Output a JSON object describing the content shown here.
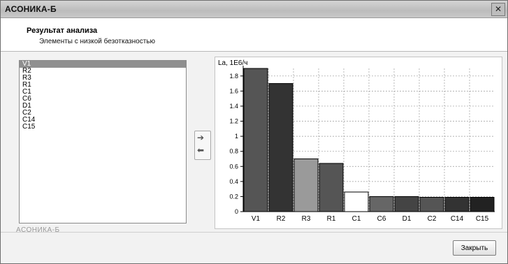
{
  "window": {
    "title": "АСОНИКА-Б",
    "close_glyph": "✕"
  },
  "header": {
    "title": "Результат анализа",
    "subtitle": "Элементы с низкой безотказностью"
  },
  "list": {
    "items": [
      "V1",
      "R2",
      "R3",
      "R1",
      "C1",
      "C6",
      "D1",
      "C2",
      "C14",
      "C15"
    ],
    "selected_index": 0
  },
  "brand": "АСОНИКА-Б",
  "swap_icons": [
    "swap-right-icon",
    "swap-left-icon"
  ],
  "buttons": {
    "close_label": "Закрыть"
  },
  "chart_data": {
    "type": "bar",
    "ylabel": "La, 1E6/ч",
    "ylim": [
      0,
      1.9
    ],
    "yticks": [
      0,
      0.2,
      0.4,
      0.6,
      0.8,
      1,
      1.2,
      1.4,
      1.6,
      1.8
    ],
    "grid": true,
    "categories": [
      "V1",
      "R2",
      "R3",
      "R1",
      "C1",
      "C6",
      "D1",
      "C2",
      "C14",
      "C15"
    ],
    "values": [
      1.9,
      1.7,
      0.7,
      0.64,
      0.26,
      0.2,
      0.2,
      0.19,
      0.19,
      0.19
    ],
    "colors": [
      "#555555",
      "#333333",
      "#9a9a9a",
      "#555555",
      "#ffffff",
      "#666666",
      "#444444",
      "#555555",
      "#333333",
      "#222222"
    ]
  }
}
